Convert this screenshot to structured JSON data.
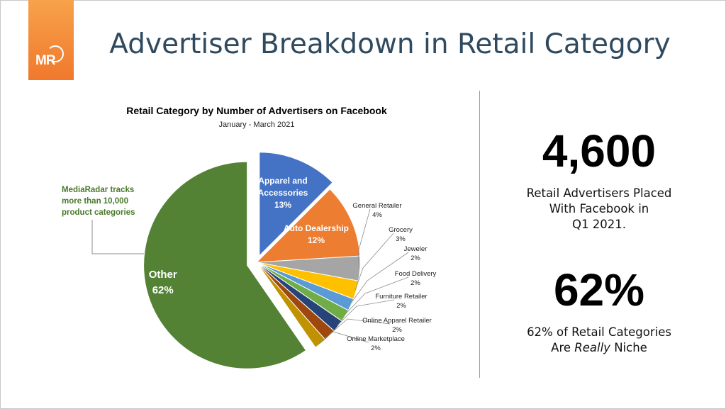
{
  "header": {
    "title": "Advertiser Breakdown in Retail Category",
    "logo_text": "MR"
  },
  "callout": {
    "text_lines": [
      "MediaRadar tracks",
      "more than 10,000",
      "product categories"
    ]
  },
  "stats": {
    "primary_value": "4,600",
    "primary_caption_lines": [
      "Retail Advertisers Placed",
      "With Facebook in",
      "Q1 2021."
    ],
    "secondary_value": "62%",
    "secondary_caption_line1": "62% of Retail Categories",
    "secondary_caption_line2_prefix": "Are ",
    "secondary_caption_line2_emphasis": "Really",
    "secondary_caption_line2_suffix": " Niche"
  },
  "chart_data": {
    "type": "pie",
    "title": "Retail Category by Number of Advertisers on Facebook",
    "subtitle": "January - March 2021",
    "unit": "%",
    "slices": [
      {
        "label": "Apparel and Accessories",
        "value": 13,
        "color": "#4472c4",
        "label_position": "inside",
        "label_lines": [
          "Apparel and",
          "Accessories",
          "13%"
        ]
      },
      {
        "label": "Auto Dealership",
        "value": 12,
        "color": "#ed7d31",
        "label_position": "inside",
        "label_lines": [
          "Auto Dealership",
          "12%"
        ]
      },
      {
        "label": "General Retailer",
        "value": 4,
        "color": "#a5a5a5",
        "label_position": "outside",
        "label_lines": [
          "General Retailer",
          "4%"
        ]
      },
      {
        "label": "Grocery",
        "value": 3,
        "color": "#ffc000",
        "label_position": "outside",
        "label_lines": [
          "Grocery",
          "3%"
        ]
      },
      {
        "label": "Jeweler",
        "value": 2,
        "color": "#5b9bd5",
        "label_position": "outside",
        "label_lines": [
          "Jeweler",
          "2%"
        ]
      },
      {
        "label": "Food Delivery",
        "value": 2,
        "color": "#70ad47",
        "label_position": "outside",
        "label_lines": [
          "Food Delivery",
          "2%"
        ]
      },
      {
        "label": "Furniture Retailer",
        "value": 2,
        "color": "#264478",
        "label_position": "outside",
        "label_lines": [
          "Furniture Retailer",
          "2%"
        ]
      },
      {
        "label": "Online Apparel Retailer",
        "value": 2,
        "color": "#9e480e",
        "label_position": "outside",
        "label_lines": [
          "Online Apparel Retailer",
          "2%"
        ]
      },
      {
        "label": "Online Marketplace",
        "value": 2,
        "color": "#c09100",
        "label_position": "outside",
        "label_lines": [
          "Online Marketplace",
          "2%"
        ]
      },
      {
        "label": "Other",
        "value": 62,
        "color": "#548235",
        "label_position": "inside",
        "label_lines": [
          "Other",
          "62%"
        ]
      }
    ],
    "legend": "none",
    "colors": {
      "title": "#000000",
      "callout_text": "#4a7a2a",
      "inside_label": "#ffffff",
      "outside_label": "#222222",
      "leader_line": "#8c8c8c"
    }
  }
}
